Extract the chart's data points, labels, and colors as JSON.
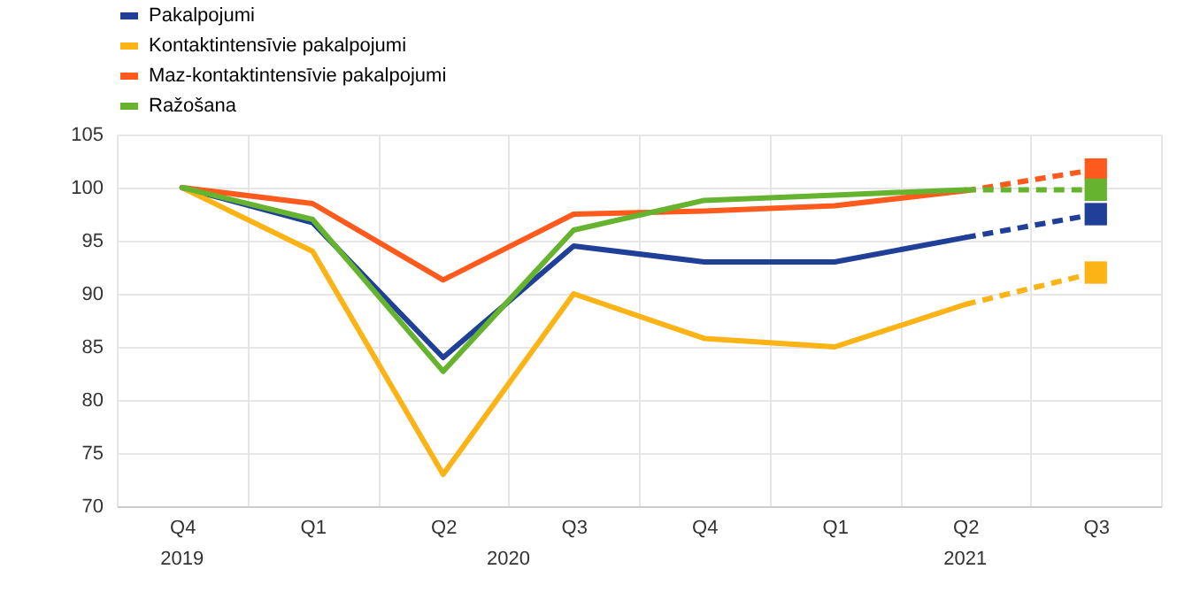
{
  "chart_data": {
    "type": "line",
    "categories": [
      "Q4",
      "Q1",
      "Q2",
      "Q3",
      "Q4",
      "Q1",
      "Q2",
      "Q3"
    ],
    "annotations": [
      "2019",
      "2020",
      "2021"
    ],
    "series": [
      {
        "name": "Pakalpojumi",
        "color": "#1f3f99",
        "values": [
          100,
          96.7,
          84,
          94.5,
          93,
          93,
          95.3,
          null
        ]
      },
      {
        "name": "Kontaktintensīvie pakalpojumi",
        "color": "#fbb315",
        "values": [
          100,
          94,
          73,
          90,
          85.8,
          85,
          89,
          null
        ]
      },
      {
        "name": "Maz-kontaktintensīvie pakalpojumi",
        "color": "#fe5a1d",
        "values": [
          100,
          98.5,
          91.3,
          97.5,
          97.8,
          98.3,
          99.7,
          null
        ]
      },
      {
        "name": "Ražošana",
        "color": "#65b32e",
        "values": [
          100,
          97,
          82.7,
          96,
          98.8,
          99.3,
          99.8,
          null
        ]
      },
      {
        "color": "#1f3f99",
        "line_style": "dashed",
        "values": [
          null,
          null,
          null,
          null,
          null,
          null,
          95.3,
          97.5
        ]
      },
      {
        "color": "#fbb315",
        "line_style": "dashed",
        "values": [
          null,
          null,
          null,
          null,
          null,
          null,
          89,
          92
        ]
      },
      {
        "color": "#fe5a1d",
        "line_style": "dashed",
        "values": [
          null,
          null,
          null,
          null,
          null,
          null,
          99.7,
          101.7
        ]
      },
      {
        "color": "#65b32e",
        "line_style": "dashed",
        "values": [
          null,
          null,
          null,
          null,
          null,
          null,
          99.8,
          99.8
        ]
      },
      {
        "type": "scatter",
        "marker": "square",
        "color": "#1f3f99",
        "values": [
          null,
          null,
          null,
          null,
          null,
          null,
          null,
          97.5
        ]
      },
      {
        "type": "scatter",
        "marker": "square",
        "color": "#fbb315",
        "values": [
          null,
          null,
          null,
          null,
          null,
          null,
          null,
          92
        ]
      },
      {
        "type": "scatter",
        "marker": "square",
        "color": "#fe5a1d",
        "values": [
          null,
          null,
          null,
          null,
          null,
          null,
          null,
          101.7
        ]
      },
      {
        "type": "scatter",
        "marker": "square",
        "color": "#65b32e",
        "values": [
          null,
          null,
          null,
          null,
          null,
          null,
          null,
          99.8
        ]
      }
    ],
    "ylim": [
      70,
      105
    ],
    "yticks": [
      70,
      75,
      80,
      85,
      90,
      95,
      100,
      105
    ],
    "grid": true,
    "legend": "top left"
  }
}
